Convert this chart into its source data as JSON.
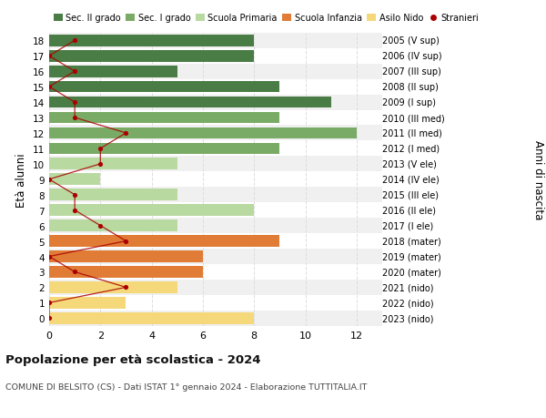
{
  "ages": [
    18,
    17,
    16,
    15,
    14,
    13,
    12,
    11,
    10,
    9,
    8,
    7,
    6,
    5,
    4,
    3,
    2,
    1,
    0
  ],
  "right_labels": [
    "2005 (V sup)",
    "2006 (IV sup)",
    "2007 (III sup)",
    "2008 (II sup)",
    "2009 (I sup)",
    "2010 (III med)",
    "2011 (II med)",
    "2012 (I med)",
    "2013 (V ele)",
    "2014 (IV ele)",
    "2015 (III ele)",
    "2016 (II ele)",
    "2017 (I ele)",
    "2018 (mater)",
    "2019 (mater)",
    "2020 (mater)",
    "2021 (nido)",
    "2022 (nido)",
    "2023 (nido)"
  ],
  "bar_values": [
    8,
    8,
    5,
    9,
    11,
    9,
    12,
    9,
    5,
    2,
    5,
    8,
    5,
    9,
    6,
    6,
    5,
    3,
    8
  ],
  "bar_colors": [
    "#4a7c45",
    "#4a7c45",
    "#4a7c45",
    "#4a7c45",
    "#4a7c45",
    "#7aab66",
    "#7aab66",
    "#7aab66",
    "#b8d9a0",
    "#b8d9a0",
    "#b8d9a0",
    "#b8d9a0",
    "#b8d9a0",
    "#e07c35",
    "#e07c35",
    "#e07c35",
    "#f5d87a",
    "#f5d87a",
    "#f5d87a"
  ],
  "stranieri_values": [
    1,
    0,
    1,
    0,
    1,
    1,
    3,
    2,
    2,
    0,
    1,
    1,
    2,
    3,
    0,
    1,
    3,
    0,
    0
  ],
  "stranieri_color": "#aa0000",
  "legend_labels": [
    "Sec. II grado",
    "Sec. I grado",
    "Scuola Primaria",
    "Scuola Infanzia",
    "Asilo Nido",
    "Stranieri"
  ],
  "legend_colors": [
    "#4a7c45",
    "#7aab66",
    "#b8d9a0",
    "#e07c35",
    "#f5d87a",
    "#aa0000"
  ],
  "title": "Popolazione per età scolastica - 2024",
  "subtitle": "COMUNE DI BELSITO (CS) - Dati ISTAT 1° gennaio 2024 - Elaborazione TUTTITALIA.IT",
  "ylabel": "Età alunni",
  "ylabel2": "Anni di nascita",
  "xlim": [
    0,
    13
  ],
  "ylim": [
    -0.5,
    18.5
  ],
  "bg_color": "#ffffff",
  "grid_color": "#dddddd",
  "row_colors": [
    "#f0f0f0",
    "#ffffff"
  ]
}
